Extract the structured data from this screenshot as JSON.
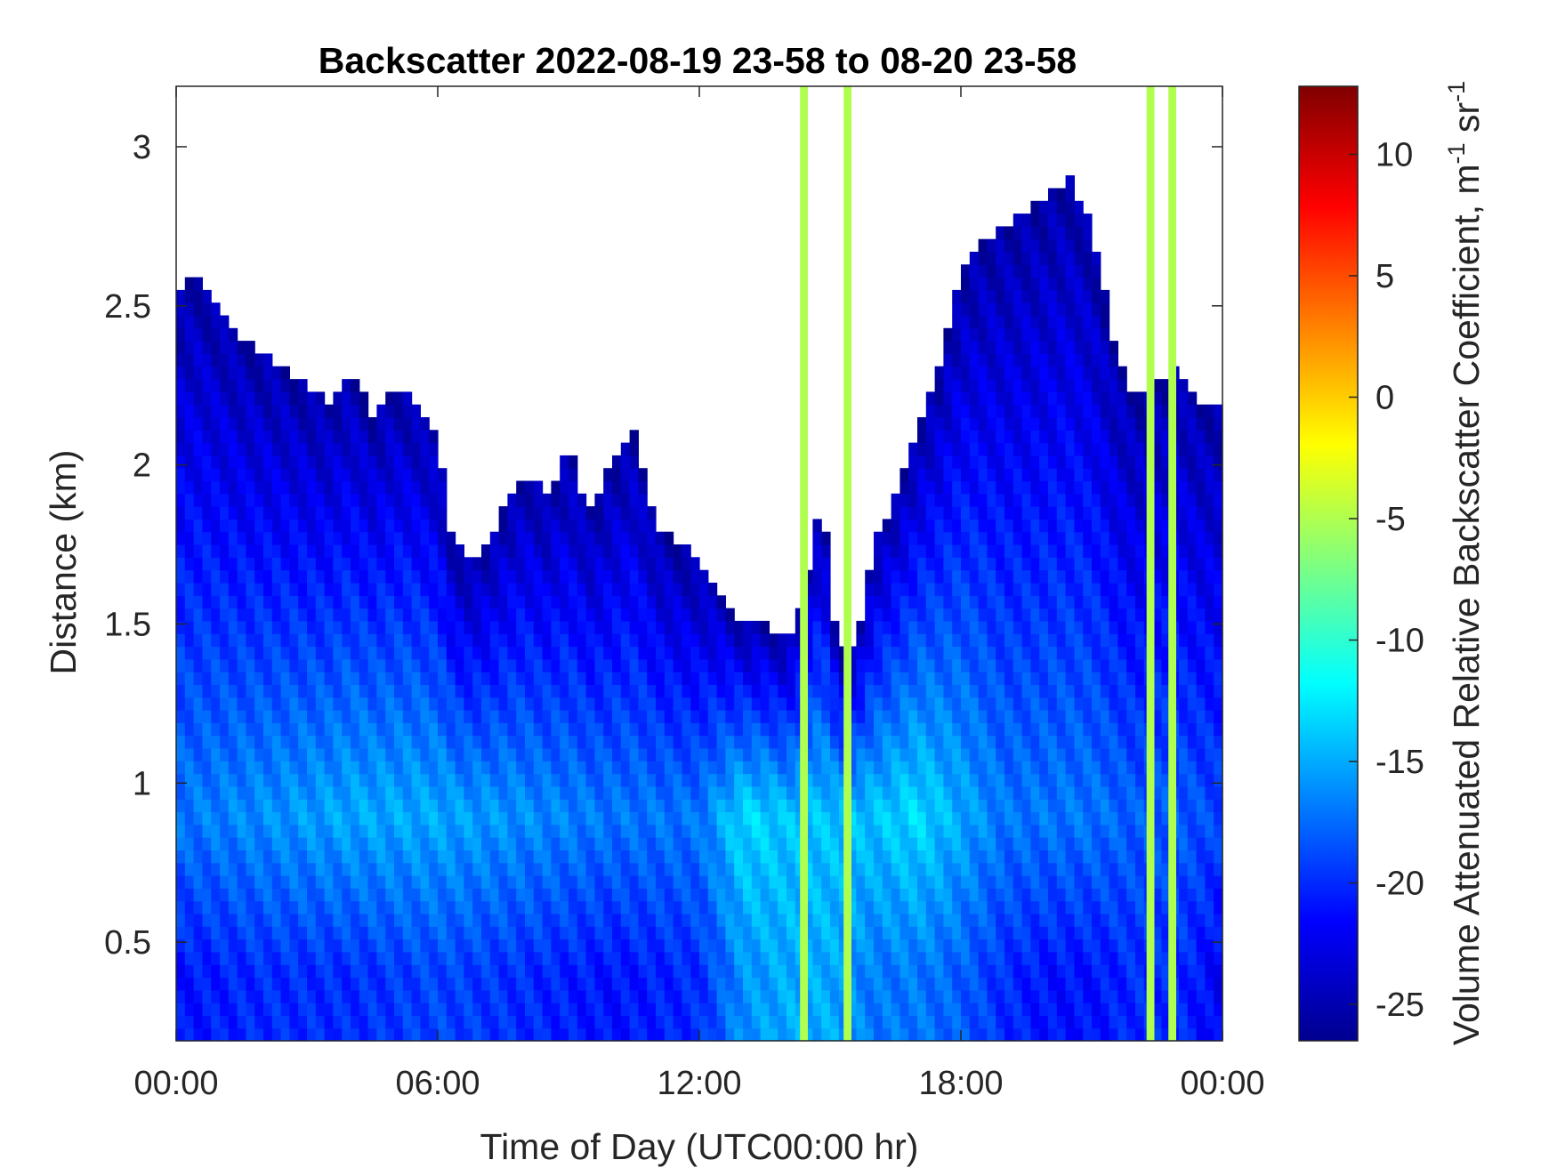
{
  "chart_data": {
    "type": "heatmap",
    "title": "Backscatter 2022-08-19 23-58 to 08-20 23-58",
    "xlabel": "Time of Day (UTC00:00 hr)",
    "ylabel": "Distance (km)",
    "colorbar_label": "Volume Attenuated Relative Backscatter Coefficient, m",
    "colorbar_unit_sup1": "-1",
    "colorbar_unit_mid": " sr",
    "colorbar_unit_sup2": "-1",
    "colormap": "jet",
    "x_ticks": [
      "00:00",
      "06:00",
      "12:00",
      "18:00",
      "00:00"
    ],
    "x_tick_hours": [
      0,
      6,
      12,
      18,
      24
    ],
    "xlim_hours": [
      0,
      24
    ],
    "y_ticks": [
      "0.5",
      "1",
      "1.5",
      "2",
      "2.5",
      "3"
    ],
    "y_tick_values": [
      0.5,
      1,
      1.5,
      2,
      2.5,
      3
    ],
    "ylim_km": [
      0.19,
      3.19
    ],
    "colorbar_ticks": [
      "10",
      "5",
      "0",
      "-5",
      "-10",
      "-15",
      "-20",
      "-25"
    ],
    "colorbar_tick_values": [
      10,
      5,
      0,
      -5,
      -10,
      -15,
      -20,
      -25
    ],
    "clim": [
      -26.5,
      12.8
    ],
    "signal_top_km": {
      "hours": [
        0.0,
        0.5,
        1.0,
        1.5,
        2.0,
        2.5,
        3.0,
        3.5,
        4.0,
        4.5,
        5.0,
        5.5,
        6.0,
        6.3,
        6.6,
        7.0,
        7.5,
        8.0,
        8.5,
        9.0,
        9.5,
        10.0,
        10.5,
        11.0,
        11.5,
        12.0,
        12.5,
        13.0,
        13.5,
        14.0,
        14.4,
        14.8,
        15.2,
        15.6,
        16.0,
        16.5,
        17.0,
        17.5,
        18.0,
        18.5,
        19.0,
        19.5,
        20.0,
        20.5,
        21.0,
        21.5,
        22.0,
        22.5,
        23.0,
        23.5,
        24.0
      ],
      "top_km": [
        2.55,
        2.6,
        2.5,
        2.4,
        2.35,
        2.3,
        2.25,
        2.2,
        2.3,
        2.15,
        2.25,
        2.2,
        2.1,
        1.8,
        1.7,
        1.72,
        1.85,
        1.98,
        1.9,
        2.05,
        1.85,
        2.0,
        2.1,
        1.8,
        1.75,
        1.7,
        1.6,
        1.5,
        1.5,
        1.45,
        1.6,
        1.9,
        1.4,
        1.45,
        1.75,
        1.9,
        2.1,
        2.3,
        2.6,
        2.7,
        2.75,
        2.8,
        2.85,
        2.9,
        2.75,
        2.4,
        2.2,
        2.25,
        2.3,
        2.2,
        2.2
      ]
    },
    "intensity_dB": {
      "hours": [
        0,
        2,
        4,
        6,
        8,
        10,
        12,
        13,
        14,
        15,
        16,
        17,
        18,
        19,
        20,
        21,
        22,
        23,
        24
      ],
      "near_0_4km": [
        -21,
        -20,
        -20,
        -19,
        -20,
        -21,
        -20,
        -16,
        -15,
        -15,
        -17,
        -17,
        -18,
        -20,
        -21,
        -21,
        -20,
        -20,
        -22
      ],
      "peak_0_9km": [
        -17,
        -16,
        -15,
        -15,
        -16,
        -17,
        -17,
        -13,
        -14,
        -14,
        -14,
        -13,
        -15,
        -17,
        -17,
        -17,
        -18,
        -18,
        -19
      ]
    },
    "high_signal_columns_hours": [
      14.4,
      15.4,
      22.35,
      22.85
    ]
  }
}
